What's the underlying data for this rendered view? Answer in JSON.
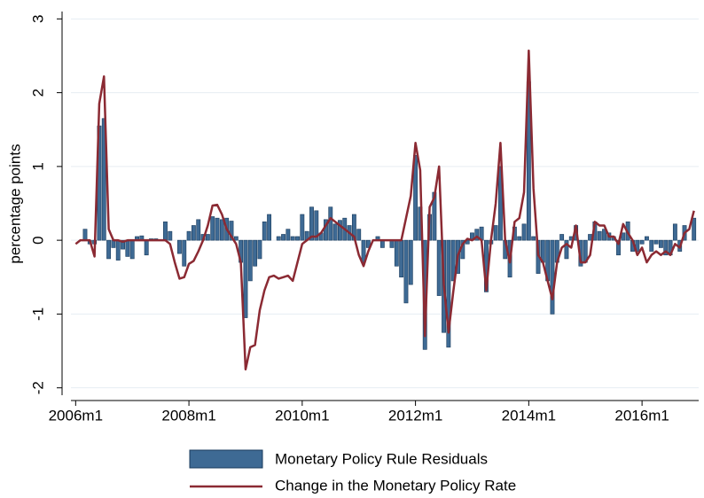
{
  "chart_data": {
    "type": "bar",
    "y_label": "percentage points",
    "x": [
      552,
      553,
      554,
      555,
      556,
      557,
      558,
      559,
      560,
      561,
      562,
      563,
      564,
      565,
      566,
      567,
      568,
      569,
      570,
      571,
      572,
      573,
      574,
      575,
      576,
      577,
      578,
      579,
      580,
      581,
      582,
      583,
      584,
      585,
      586,
      587,
      588,
      589,
      590,
      591,
      592,
      593,
      594,
      595,
      596,
      597,
      598,
      599,
      600,
      601,
      602,
      603,
      604,
      605,
      606,
      607,
      608,
      609,
      610,
      611,
      612,
      613,
      614,
      615,
      616,
      617,
      618,
      619,
      620,
      621,
      622,
      623,
      624,
      625,
      626,
      627,
      628,
      629,
      630,
      631,
      632,
      633,
      634,
      635,
      636,
      637,
      638,
      639,
      640,
      641,
      642,
      643,
      644,
      645,
      646,
      647,
      648,
      649,
      650,
      651,
      652,
      653,
      654,
      655,
      656,
      657,
      658,
      659,
      660,
      661,
      662,
      663,
      664,
      665,
      666,
      667,
      668,
      669,
      670,
      671,
      672,
      673,
      674,
      675,
      676,
      677,
      678,
      679,
      680,
      681,
      682,
      683
    ],
    "series": [
      {
        "name": "Monetary Policy Rule Residuals",
        "type": "bar",
        "color": "#3e6a94",
        "values": [
          0,
          0,
          0.15,
          -0.05,
          -0.05,
          1.55,
          1.65,
          -0.25,
          -0.1,
          -0.27,
          -0.12,
          -0.22,
          -0.25,
          0.05,
          0.06,
          -0.2,
          0.02,
          0.02,
          0,
          0.25,
          0.12,
          0,
          -0.18,
          -0.35,
          0.12,
          0.2,
          0.28,
          0.08,
          0.08,
          0.32,
          0.3,
          0.28,
          0.3,
          0.26,
          0.05,
          -0.3,
          -1.05,
          -0.55,
          -0.35,
          -0.25,
          0.25,
          0.35,
          0,
          0.05,
          0.08,
          0.15,
          0.05,
          0.05,
          0.35,
          0.12,
          0.45,
          0.4,
          0.1,
          0.28,
          0.45,
          0.22,
          0.27,
          0.3,
          0.2,
          0.35,
          0.15,
          -0.3,
          -0.1,
          0,
          0.05,
          -0.1,
          0,
          -0.1,
          -0.35,
          -0.5,
          -0.85,
          -0.6,
          1.15,
          0.45,
          -1.48,
          0.35,
          0.65,
          -0.75,
          -1.25,
          -1.45,
          -0.55,
          -0.45,
          -0.25,
          -0.05,
          0.1,
          0.15,
          0.18,
          -0.7,
          -0.05,
          0.2,
          1.0,
          -0.25,
          -0.5,
          0.18,
          0.05,
          0.22,
          2.15,
          0.05,
          -0.45,
          -0.3,
          -0.55,
          -1.0,
          -0.3,
          0.08,
          -0.25,
          0.05,
          0.2,
          -0.35,
          -0.3,
          0.08,
          0.25,
          0.12,
          0.15,
          0.1,
          0.05,
          -0.2,
          0.1,
          0.25,
          -0.15,
          -0.15,
          -0.05,
          0.05,
          -0.15,
          -0.05,
          -0.1,
          -0.2,
          -0.2,
          0.22,
          -0.15,
          0.2,
          0,
          0.3
        ]
      },
      {
        "name": "Change in the Monetary Policy Rate",
        "type": "line",
        "color": "#8b2a33",
        "values": [
          -0.05,
          0,
          0,
          0,
          -0.22,
          1.85,
          2.22,
          0.15,
          0,
          0,
          -0.02,
          0,
          0,
          0,
          0,
          0,
          0,
          0,
          0,
          0,
          -0.05,
          -0.3,
          -0.52,
          -0.5,
          -0.32,
          -0.28,
          -0.15,
          0,
          0.2,
          0.47,
          0.48,
          0.35,
          0.15,
          0.05,
          -0.05,
          -0.3,
          -1.75,
          -1.45,
          -1.42,
          -0.95,
          -0.68,
          -0.5,
          -0.48,
          -0.52,
          -0.5,
          -0.48,
          -0.55,
          -0.3,
          -0.05,
          0,
          0.05,
          0.05,
          0.1,
          0.2,
          0.3,
          0.25,
          0.2,
          0.15,
          0.1,
          0.05,
          -0.2,
          -0.35,
          -0.15,
          0,
          0,
          0,
          0,
          0,
          0,
          0,
          0.3,
          0.6,
          1.32,
          0.95,
          -1.3,
          0.45,
          0.58,
          1.0,
          -0.6,
          -1.25,
          -0.7,
          -0.2,
          -0.05,
          0.02,
          0,
          0.05,
          0,
          -0.68,
          0,
          0.5,
          1.32,
          0,
          -0.3,
          0.25,
          0.3,
          0.65,
          2.57,
          0.7,
          -0.2,
          -0.3,
          -0.55,
          -0.8,
          -0.3,
          -0.1,
          -0.05,
          -0.1,
          0.2,
          -0.3,
          -0.3,
          -0.2,
          0.25,
          0.2,
          0.2,
          0.05,
          0.05,
          -0.05,
          0.22,
          0.1,
          0,
          -0.2,
          -0.1,
          -0.3,
          -0.2,
          -0.15,
          -0.2,
          -0.15,
          -0.2,
          -0.05,
          -0.1,
          0.1,
          0.15,
          0.4
        ]
      }
    ],
    "xlim": [
      551,
      684
    ],
    "xticks": [
      {
        "value": 552,
        "label": "2006m1"
      },
      {
        "value": 576,
        "label": "2008m1"
      },
      {
        "value": 600,
        "label": "2010m1"
      },
      {
        "value": 624,
        "label": "2012m1"
      },
      {
        "value": 648,
        "label": "2014m1"
      },
      {
        "value": 672,
        "label": "2016m1"
      }
    ],
    "ylim": [
      -2.1,
      3.1
    ],
    "yticks": [
      -2,
      -1,
      0,
      1,
      2,
      3
    ],
    "grid": true
  }
}
